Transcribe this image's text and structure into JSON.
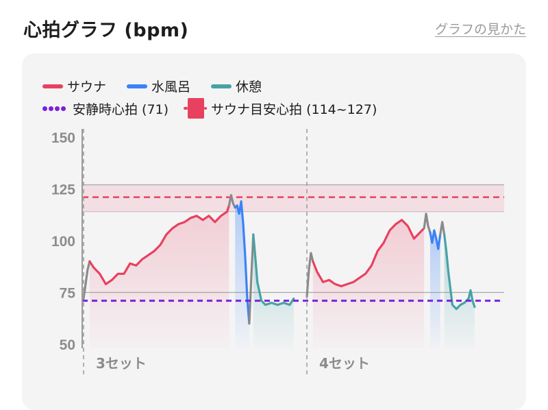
{
  "header": {
    "title": "心拍グラフ (bpm)",
    "help_link": "グラフの見かた"
  },
  "colors": {
    "sauna": "#e8415f",
    "water": "#3b82f6",
    "rest": "#46a3a4",
    "resting_hr": "#7c1fe0",
    "target_band": "#e8415f",
    "transition": "#8a8a8a"
  },
  "legend": {
    "sauna": "サウナ",
    "water": "水風呂",
    "rest": "休憩",
    "resting_hr": "安静時心拍 (71)",
    "target": "サウナ目安心拍 (114~127)"
  },
  "chart_data": {
    "type": "line",
    "ylim": [
      48,
      155
    ],
    "yticks": [
      "150",
      "125",
      "100",
      "75",
      "50"
    ],
    "reference_lines": [
      {
        "name": "安静時心拍",
        "value": 71,
        "style": "dashed"
      },
      {
        "name": "サウナ目安心拍",
        "band": [
          114,
          127
        ],
        "center": 121,
        "style": "dashed"
      }
    ],
    "set_labels": [
      "3セット",
      "4セット"
    ],
    "sets": [
      {
        "label": "3セット",
        "segments": [
          {
            "phase": "transition",
            "points": [
              [
                0,
                72
              ],
              [
                2,
                86
              ],
              [
                3,
                90
              ]
            ]
          },
          {
            "phase": "sauna",
            "points": [
              [
                3,
                90
              ],
              [
                5,
                87
              ],
              [
                8,
                84
              ],
              [
                11,
                79
              ],
              [
                14,
                81
              ],
              [
                17,
                84
              ],
              [
                20,
                84
              ],
              [
                23,
                89
              ],
              [
                26,
                88
              ],
              [
                29,
                91
              ],
              [
                32,
                93
              ],
              [
                35,
                95
              ],
              [
                38,
                98
              ],
              [
                41,
                103
              ],
              [
                44,
                106
              ],
              [
                47,
                108
              ],
              [
                50,
                109
              ],
              [
                53,
                111
              ],
              [
                56,
                112
              ],
              [
                59,
                110
              ],
              [
                62,
                112
              ],
              [
                65,
                109
              ],
              [
                68,
                112
              ],
              [
                71,
                114
              ],
              [
                72,
                117
              ]
            ]
          },
          {
            "phase": "transition",
            "points": [
              [
                72,
                117
              ],
              [
                73,
                122
              ],
              [
                74,
                118
              ],
              [
                75,
                116
              ]
            ]
          },
          {
            "phase": "water",
            "points": [
              [
                75,
                116
              ],
              [
                76,
                117
              ],
              [
                77,
                113
              ],
              [
                78,
                119
              ],
              [
                79,
                108
              ],
              [
                80,
                92
              ],
              [
                81,
                72
              ],
              [
                82,
                60
              ]
            ]
          },
          {
            "phase": "transition",
            "points": [
              [
                82,
                60
              ],
              [
                83,
                82
              ],
              [
                84,
                103
              ]
            ]
          },
          {
            "phase": "rest",
            "points": [
              [
                84,
                103
              ],
              [
                85,
                92
              ],
              [
                86,
                80
              ],
              [
                88,
                71
              ],
              [
                90,
                69
              ],
              [
                93,
                70
              ],
              [
                96,
                69
              ],
              [
                99,
                70
              ],
              [
                102,
                69
              ],
              [
                104,
                72
              ]
            ]
          }
        ]
      },
      {
        "label": "4セット",
        "segments": [
          {
            "phase": "transition",
            "points": [
              [
                0,
                73
              ],
              [
                1,
                86
              ],
              [
                2,
                94
              ],
              [
                3,
                90
              ]
            ]
          },
          {
            "phase": "sauna",
            "points": [
              [
                3,
                90
              ],
              [
                5,
                85
              ],
              [
                8,
                80
              ],
              [
                11,
                81
              ],
              [
                14,
                79
              ],
              [
                17,
                78
              ],
              [
                20,
                79
              ],
              [
                23,
                80
              ],
              [
                26,
                82
              ],
              [
                29,
                84
              ],
              [
                32,
                88
              ],
              [
                35,
                95
              ],
              [
                38,
                99
              ],
              [
                41,
                105
              ],
              [
                44,
                108
              ],
              [
                47,
                110
              ],
              [
                50,
                107
              ],
              [
                53,
                101
              ],
              [
                56,
                104
              ],
              [
                58,
                106
              ]
            ]
          },
          {
            "phase": "transition",
            "points": [
              [
                58,
                106
              ],
              [
                59,
                113
              ],
              [
                60,
                107
              ],
              [
                61,
                104
              ]
            ]
          },
          {
            "phase": "water",
            "points": [
              [
                61,
                104
              ],
              [
                62,
                99
              ],
              [
                63,
                105
              ],
              [
                64,
                101
              ],
              [
                65,
                96
              ],
              [
                66,
                103
              ]
            ]
          },
          {
            "phase": "transition",
            "points": [
              [
                66,
                103
              ],
              [
                67,
                109
              ],
              [
                68,
                103
              ]
            ]
          },
          {
            "phase": "rest",
            "points": [
              [
                68,
                103
              ],
              [
                69,
                95
              ],
              [
                70,
                85
              ],
              [
                72,
                69
              ],
              [
                74,
                67
              ],
              [
                76,
                69
              ],
              [
                78,
                70
              ],
              [
                80,
                72
              ],
              [
                81,
                76
              ],
              [
                82,
                71
              ],
              [
                83,
                68
              ]
            ]
          }
        ]
      }
    ]
  }
}
